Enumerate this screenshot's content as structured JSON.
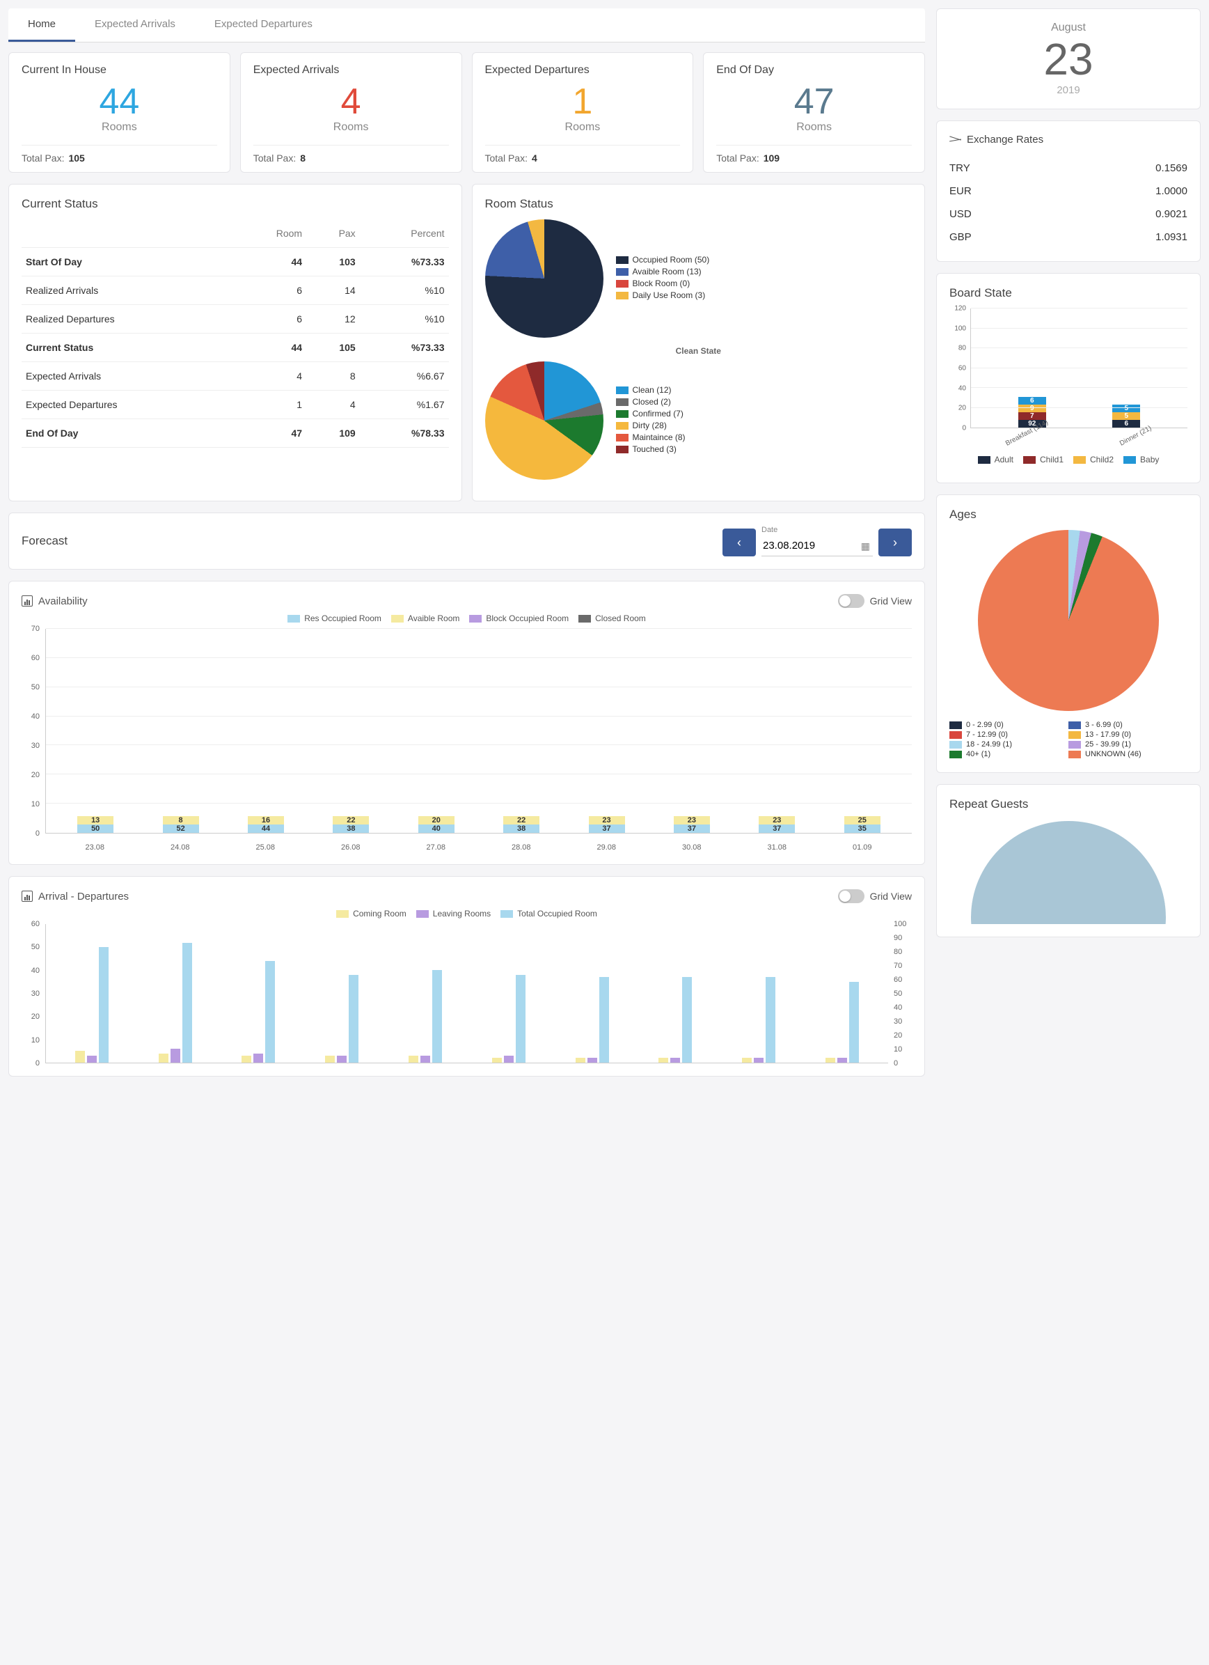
{
  "tabs": [
    "Home",
    "Expected Arrivals",
    "Expected Departures"
  ],
  "stat_cards": [
    {
      "title": "Current In House",
      "value": "44",
      "unit": "Rooms",
      "pax_label": "Total Pax:",
      "pax": "105",
      "color": "#2da6e0"
    },
    {
      "title": "Expected Arrivals",
      "value": "4",
      "unit": "Rooms",
      "pax_label": "Total Pax:",
      "pax": "8",
      "color": "#e04a3a"
    },
    {
      "title": "Expected Departures",
      "value": "1",
      "unit": "Rooms",
      "pax_label": "Total Pax:",
      "pax": "4",
      "color": "#f2a62e"
    },
    {
      "title": "End Of Day",
      "value": "47",
      "unit": "Rooms",
      "pax_label": "Total Pax:",
      "pax": "109",
      "color": "#5a7a8e"
    }
  ],
  "current_status": {
    "title": "Current Status",
    "cols": [
      "",
      "Room",
      "Pax",
      "Percent"
    ],
    "rows": [
      {
        "label": "Start Of Day",
        "room": "44",
        "pax": "103",
        "pct": "%73.33",
        "bold": true
      },
      {
        "label": "Realized Arrivals",
        "room": "6",
        "pax": "14",
        "pct": "%10",
        "bold": false
      },
      {
        "label": "Realized Departures",
        "room": "6",
        "pax": "12",
        "pct": "%10",
        "bold": false
      },
      {
        "label": "Current Status",
        "room": "44",
        "pax": "105",
        "pct": "%73.33",
        "bold": true
      },
      {
        "label": "Expected Arrivals",
        "room": "4",
        "pax": "8",
        "pct": "%6.67",
        "bold": false
      },
      {
        "label": "Expected Departures",
        "room": "1",
        "pax": "4",
        "pct": "%1.67",
        "bold": false
      },
      {
        "label": "End Of Day",
        "room": "47",
        "pax": "109",
        "pct": "%78.33",
        "bold": true
      }
    ]
  },
  "room_status": {
    "title": "Room Status",
    "pie1": {
      "slices": [
        {
          "label": "Occupied Room (50)",
          "value": 50,
          "color": "#1e2b41"
        },
        {
          "label": "Avaible Room (13)",
          "value": 13,
          "color": "#3e5fa8"
        },
        {
          "label": "Block Room (0)",
          "value": 0,
          "color": "#d9463d"
        },
        {
          "label": "Daily Use Room (3)",
          "value": 3,
          "color": "#f3b841"
        }
      ]
    },
    "pie2_title": "Clean State",
    "pie2": {
      "slices": [
        {
          "label": "Clean (12)",
          "value": 12,
          "color": "#2196d6"
        },
        {
          "label": "Closed (2)",
          "value": 2,
          "color": "#6a6a6a"
        },
        {
          "label": "Confirmed (7)",
          "value": 7,
          "color": "#1c7a2e"
        },
        {
          "label": "Dirty (28)",
          "value": 28,
          "color": "#f5b83d"
        },
        {
          "label": "Maintaince (8)",
          "value": 8,
          "color": "#e4583e"
        },
        {
          "label": "Touched (3)",
          "value": 3,
          "color": "#8f2a2a"
        }
      ]
    }
  },
  "forecast": {
    "title": "Forecast",
    "date_label": "Date",
    "date_value": "23.08.2019"
  },
  "availability": {
    "title": "Availability",
    "grid_view_label": "Grid View",
    "ylim": [
      0,
      70
    ],
    "ytick_step": 10,
    "legend": [
      {
        "label": "Res Occupied Room",
        "color": "#a8d8ee"
      },
      {
        "label": "Avaible Room",
        "color": "#f5eaa0"
      },
      {
        "label": "Block Occupied Room",
        "color": "#b89be0"
      },
      {
        "label": "Closed Room",
        "color": "#6a6a6a"
      }
    ],
    "categories": [
      "23.08",
      "24.08",
      "25.08",
      "26.08",
      "27.08",
      "28.08",
      "29.08",
      "30.08",
      "31.08",
      "01.09"
    ],
    "stacks": [
      {
        "occ": 50,
        "avail": 13
      },
      {
        "occ": 52,
        "avail": 8
      },
      {
        "occ": 44,
        "avail": 16
      },
      {
        "occ": 38,
        "avail": 22
      },
      {
        "occ": 40,
        "avail": 20
      },
      {
        "occ": 38,
        "avail": 22
      },
      {
        "occ": 37,
        "avail": 23
      },
      {
        "occ": 37,
        "avail": 23
      },
      {
        "occ": 37,
        "avail": 23
      },
      {
        "occ": 35,
        "avail": 25
      }
    ],
    "colors": {
      "occ": "#a8d8ee",
      "avail": "#f5eaa0"
    }
  },
  "arr_dep": {
    "title": "Arrival - Departures",
    "grid_view_label": "Grid View",
    "ylim_l": [
      0,
      60
    ],
    "ytick_step_l": 10,
    "ylim_r": [
      0,
      100
    ],
    "ytick_step_r": 10,
    "legend": [
      {
        "label": "Coming Room",
        "color": "#f5eaa0"
      },
      {
        "label": "Leaving Rooms",
        "color": "#b89be0"
      },
      {
        "label": "Total Occupied Room",
        "color": "#a8d8ee"
      }
    ],
    "stacks": [
      {
        "occ": 50,
        "coming": 5,
        "leaving": 3
      },
      {
        "occ": 52,
        "coming": 4,
        "leaving": 6
      },
      {
        "occ": 44,
        "coming": 3,
        "leaving": 4
      },
      {
        "occ": 38,
        "coming": 3,
        "leaving": 3
      },
      {
        "occ": 40,
        "coming": 3,
        "leaving": 3
      },
      {
        "occ": 38,
        "coming": 2,
        "leaving": 3
      },
      {
        "occ": 37,
        "coming": 2,
        "leaving": 2
      },
      {
        "occ": 37,
        "coming": 2,
        "leaving": 2
      },
      {
        "occ": 37,
        "coming": 2,
        "leaving": 2
      },
      {
        "occ": 35,
        "coming": 2,
        "leaving": 2
      }
    ]
  },
  "sidebar_date": {
    "month": "August",
    "day": "23",
    "year": "2019"
  },
  "exchange": {
    "title": "Exchange Rates",
    "rows": [
      {
        "code": "TRY",
        "rate": "0.1569"
      },
      {
        "code": "EUR",
        "rate": "1.0000"
      },
      {
        "code": "USD",
        "rate": "0.9021"
      },
      {
        "code": "GBP",
        "rate": "1.0931"
      }
    ]
  },
  "board_state": {
    "title": "Board State",
    "ylim": [
      0,
      120
    ],
    "ytick_step": 20,
    "categories": [
      "Breakfast (114)",
      "Dinner (21)"
    ],
    "stacks": [
      {
        "segs": [
          {
            "v": 92,
            "c": "#1e2b41",
            "t": "92"
          },
          {
            "v": 7,
            "c": "#8f2a2a",
            "t": "7"
          },
          {
            "v": 9,
            "c": "#f3b841",
            "t": "9"
          },
          {
            "v": 6,
            "c": "#2196d6",
            "t": "6"
          }
        ]
      },
      {
        "segs": [
          {
            "v": 6,
            "c": "#1e2b41",
            "t": "6"
          },
          {
            "v": 5,
            "c": "#8f2a2a",
            "t": ""
          },
          {
            "v": 5,
            "c": "#f3b841",
            "t": "5"
          },
          {
            "v": 5,
            "c": "#2196d6",
            "t": "5"
          }
        ]
      }
    ],
    "legend": [
      {
        "label": "Adult",
        "color": "#1e2b41"
      },
      {
        "label": "Child1",
        "color": "#8f2a2a"
      },
      {
        "label": "Child2",
        "color": "#f3b841"
      },
      {
        "label": "Baby",
        "color": "#2196d6"
      }
    ]
  },
  "ages": {
    "title": "Ages",
    "slices": [
      {
        "label": "0 - 2.99 (0)",
        "value": 0,
        "color": "#1e2b41"
      },
      {
        "label": "3 - 6.99 (0)",
        "value": 0,
        "color": "#3e5fa8"
      },
      {
        "label": "7 - 12.99 (0)",
        "value": 0,
        "color": "#d9463d"
      },
      {
        "label": "13 - 17.99 (0)",
        "value": 0,
        "color": "#f3b841"
      },
      {
        "label": "18 - 24.99 (1)",
        "value": 1,
        "color": "#a8d8ee"
      },
      {
        "label": "25 - 39.99 (1)",
        "value": 1,
        "color": "#b89be0"
      },
      {
        "label": "40+ (1)",
        "value": 1,
        "color": "#1c7a2e"
      },
      {
        "label": "UNKNOWN (46)",
        "value": 46,
        "color": "#ed7a53"
      }
    ]
  },
  "repeat": {
    "title": "Repeat Guests",
    "color": "#a9c6d6"
  }
}
